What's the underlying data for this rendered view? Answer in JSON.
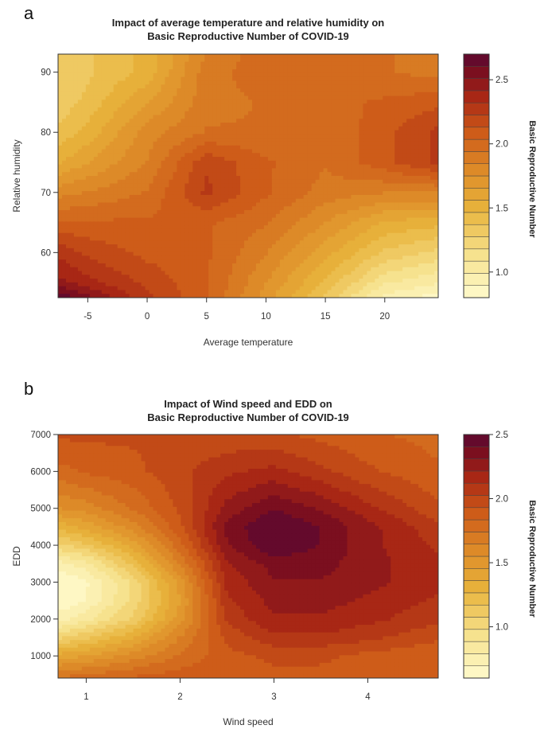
{
  "chart_data": [
    {
      "id": "a",
      "type": "heatmap",
      "panel_label": "a",
      "title": [
        "Impact of average temperature and relative humidity on",
        "Basic Reproductive Number of COVID-19"
      ],
      "xlabel": "Average temperature",
      "ylabel": "Relative humidity",
      "xlim": [
        -7.5,
        24.5
      ],
      "ylim": [
        52.5,
        93
      ],
      "xticks": [
        -5,
        0,
        5,
        10,
        15,
        20
      ],
      "yticks": [
        60,
        70,
        80,
        90
      ],
      "x": [
        -7.5,
        -5,
        0,
        5,
        10,
        15,
        20,
        24.5
      ],
      "y": [
        52.5,
        55,
        60,
        65,
        70,
        75,
        80,
        85,
        90,
        93
      ],
      "z": [
        [
          2.7,
          2.55,
          2.25,
          2.05,
          1.7,
          1.35,
          0.95,
          0.85
        ],
        [
          2.45,
          2.35,
          2.2,
          2.05,
          1.75,
          1.45,
          1.1,
          1.0
        ],
        [
          2.3,
          2.2,
          2.1,
          2.05,
          1.85,
          1.6,
          1.35,
          1.25
        ],
        [
          2.05,
          2.05,
          2.05,
          2.05,
          1.95,
          1.75,
          1.55,
          1.5
        ],
        [
          1.8,
          1.85,
          1.95,
          2.25,
          2.05,
          1.9,
          1.85,
          1.85
        ],
        [
          1.55,
          1.65,
          1.85,
          2.2,
          2.05,
          1.95,
          2.1,
          2.25
        ],
        [
          1.4,
          1.5,
          1.8,
          1.95,
          1.95,
          1.95,
          2.1,
          2.25
        ],
        [
          1.3,
          1.4,
          1.65,
          1.9,
          1.95,
          2.0,
          2.05,
          2.1
        ],
        [
          1.3,
          1.35,
          1.5,
          1.9,
          2.0,
          2.0,
          1.95,
          1.9
        ],
        [
          1.35,
          1.35,
          1.5,
          1.85,
          2.0,
          2.0,
          1.95,
          1.9
        ]
      ],
      "colorbar": {
        "label": "Basic Reproductive Number",
        "range": [
          0.8,
          2.7
        ],
        "ticks": [
          1.0,
          1.5,
          2.0,
          2.5
        ],
        "tick_labels": [
          "1.0",
          "1.5",
          "2.0",
          "2.5"
        ]
      }
    },
    {
      "id": "b",
      "type": "heatmap",
      "panel_label": "b",
      "title": [
        "Impact of Wind speed and EDD on",
        "Basic Reproductive Number of COVID-19"
      ],
      "xlabel": "Wind speed",
      "ylabel": "EDD",
      "xlim": [
        0.7,
        4.75
      ],
      "ylim": [
        400,
        7000
      ],
      "xticks": [
        1,
        2,
        3,
        4
      ],
      "yticks": [
        1000,
        2000,
        3000,
        4000,
        5000,
        6000,
        7000
      ],
      "x": [
        0.7,
        1.0,
        1.5,
        2.0,
        2.5,
        3.0,
        3.5,
        4.0,
        4.75
      ],
      "y": [
        400,
        1000,
        1500,
        2000,
        2500,
        3000,
        3500,
        4000,
        4500,
        5000,
        6000,
        7000
      ],
      "z": [
        [
          1.75,
          1.8,
          1.85,
          1.9,
          1.9,
          1.9,
          1.9,
          1.9,
          1.9
        ],
        [
          1.4,
          1.45,
          1.6,
          1.75,
          1.9,
          1.95,
          1.95,
          1.9,
          1.85
        ],
        [
          1.05,
          1.15,
          1.35,
          1.65,
          1.95,
          2.1,
          2.1,
          2.05,
          1.95
        ],
        [
          0.75,
          0.85,
          1.1,
          1.5,
          2.05,
          2.2,
          2.2,
          2.15,
          2.05
        ],
        [
          0.6,
          0.7,
          1.0,
          1.45,
          2.1,
          2.25,
          2.25,
          2.2,
          2.1
        ],
        [
          0.6,
          0.68,
          1.0,
          1.5,
          2.15,
          2.3,
          2.3,
          2.25,
          2.15
        ],
        [
          0.75,
          0.85,
          1.2,
          1.65,
          2.2,
          2.35,
          2.35,
          2.25,
          2.15
        ],
        [
          1.05,
          1.15,
          1.4,
          1.8,
          2.3,
          2.5,
          2.4,
          2.25,
          2.1
        ],
        [
          1.3,
          1.4,
          1.6,
          1.9,
          2.35,
          2.5,
          2.4,
          2.25,
          2.05
        ],
        [
          1.55,
          1.6,
          1.75,
          1.95,
          2.25,
          2.4,
          2.3,
          2.15,
          1.95
        ],
        [
          1.8,
          1.85,
          1.9,
          2.0,
          2.1,
          2.15,
          2.05,
          1.95,
          1.85
        ],
        [
          1.95,
          1.95,
          1.95,
          1.95,
          1.95,
          1.95,
          1.9,
          1.85,
          1.8
        ]
      ],
      "colorbar": {
        "label": "Basic Reproductive Number",
        "range": [
          0.6,
          2.5
        ],
        "ticks": [
          1.0,
          1.5,
          2.0,
          2.5
        ],
        "tick_labels": [
          "1.0",
          "1.5",
          "2.0",
          "2.5"
        ]
      }
    }
  ]
}
